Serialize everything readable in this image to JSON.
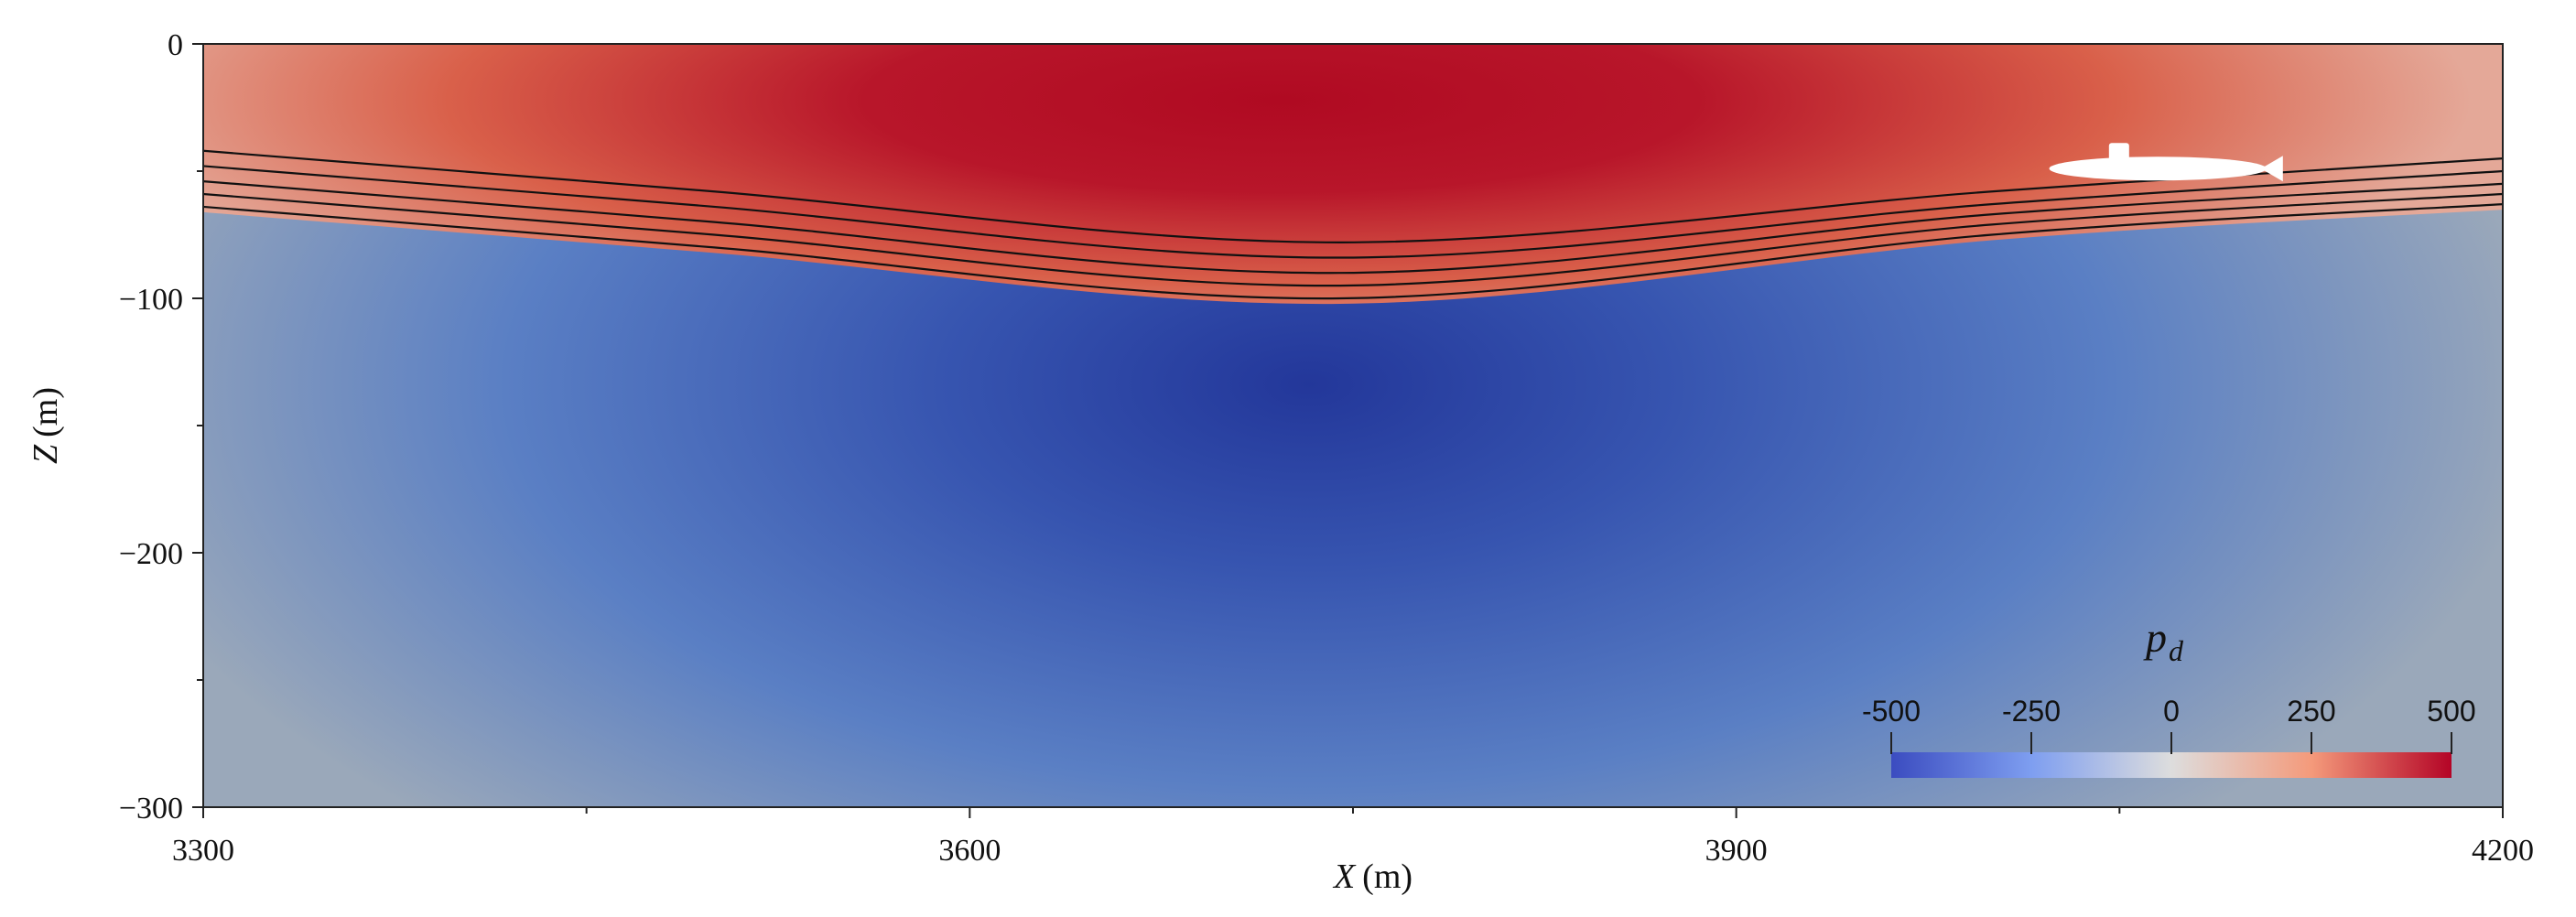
{
  "chart_data": {
    "type": "heatmap",
    "xlabel_var": "X",
    "xlabel_unit": "(m)",
    "ylabel_var": "Z",
    "ylabel_unit": "(m)",
    "xlim": [
      3300,
      4200
    ],
    "ylim": [
      -300,
      0
    ],
    "xticks": [
      3300,
      3600,
      3900,
      4200
    ],
    "xtick_labels": [
      "3300",
      "3600",
      "3900",
      "4200"
    ],
    "yticks": [
      0,
      -100,
      -200,
      -300
    ],
    "ytick_labels": [
      "0",
      "−100",
      "−200",
      "−300"
    ],
    "colorbar": {
      "title_var": "p",
      "title_sub": "d",
      "range": [
        -500,
        500
      ],
      "ticks": [
        -500,
        -250,
        0,
        250,
        500
      ],
      "tick_labels": [
        "-500",
        "-250",
        "0",
        "250",
        "500"
      ],
      "colors": [
        "#3b4cc0",
        "#dddddd",
        "#b40426"
      ]
    },
    "field": {
      "description_color_mid": "#a0a0a0",
      "positive_peak": {
        "x": 3745,
        "z": -30,
        "value": 500
      },
      "negative_peak": {
        "x": 3745,
        "z": -140,
        "value": -480
      }
    },
    "isopycnals": [
      {
        "level": 1,
        "x": [
          3300,
          3500,
          3745,
          4000,
          4200
        ],
        "z": [
          -42,
          -58,
          -78,
          -58,
          -45
        ]
      },
      {
        "level": 2,
        "x": [
          3300,
          3500,
          3745,
          4000,
          4200
        ],
        "z": [
          -48,
          -64,
          -84,
          -63,
          -50
        ]
      },
      {
        "level": 3,
        "x": [
          3300,
          3500,
          3745,
          4000,
          4200
        ],
        "z": [
          -54,
          -70,
          -90,
          -67,
          -55
        ]
      },
      {
        "level": 4,
        "x": [
          3300,
          3500,
          3745,
          4000,
          4200
        ],
        "z": [
          -59,
          -75,
          -95,
          -71,
          -59
        ]
      },
      {
        "level": 5,
        "x": [
          3300,
          3500,
          3745,
          4000,
          4200
        ],
        "z": [
          -64,
          -80,
          -100,
          -75,
          -63
        ]
      }
    ],
    "submarine": {
      "x_center": 4065,
      "z_center": -49,
      "length": 85
    }
  }
}
